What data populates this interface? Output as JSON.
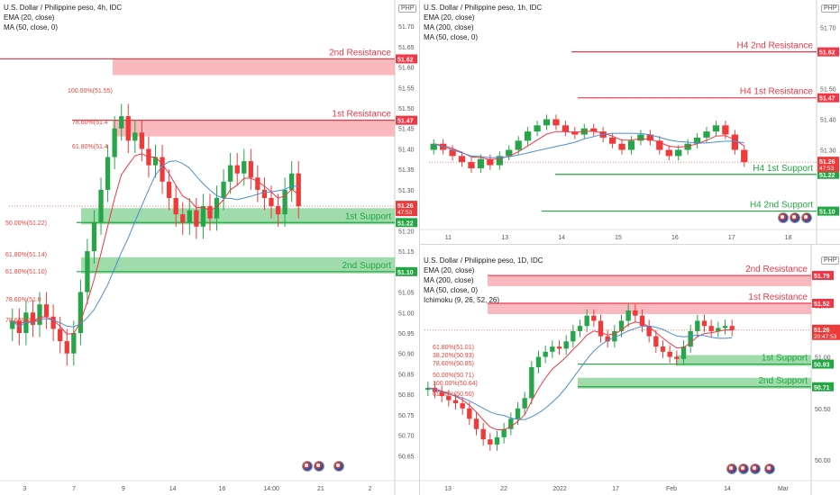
{
  "panels": {
    "p4h": {
      "legend": [
        "U.S. Dollar / Philippine peso, 4h, IDC",
        "EMA (20, close)",
        "MA (50, close, 0)"
      ],
      "currency": "PHP",
      "price_ticks": [
        "51.70",
        "51.65",
        "51.60",
        "51.55",
        "51.50",
        "51.45",
        "51.40",
        "51.35",
        "51.30",
        "51.25",
        "51.20",
        "51.15",
        "51.10",
        "51.05",
        "51.00",
        "50.95",
        "50.90",
        "50.85",
        "50.80",
        "50.75",
        "50.70",
        "50.65"
      ],
      "price_tick_values": [
        51.7,
        51.65,
        51.6,
        51.55,
        51.5,
        51.45,
        51.4,
        51.35,
        51.3,
        51.25,
        51.2,
        51.15,
        51.1,
        51.05,
        51.0,
        50.95,
        50.9,
        50.85,
        50.8,
        50.75,
        50.7,
        50.65
      ],
      "time_ticks": [
        "3",
        "7",
        "9",
        "14",
        "16",
        "14:00",
        "21",
        "2"
      ],
      "zones": [
        {
          "label": "2nd Resistance",
          "tag": "51.62",
          "kind": "resistance"
        },
        {
          "label": "1st Resistance",
          "tag": "51.47",
          "kind": "resistance"
        },
        {
          "label": "1st Support",
          "tag": "51.22",
          "kind": "support"
        },
        {
          "label": "2nd Support",
          "tag": "51.10",
          "kind": "support"
        }
      ],
      "last_price": "51.26",
      "countdown": "47:53",
      "fib_labels": [
        "100.00%(51.55)",
        "78.60%(51.4",
        "61.80%(51.4",
        "50.00%(51.22)",
        "61.80%(51.14)",
        "61.80%(51.10)",
        "78.60%(51.0",
        "78.60%(50.9"
      ]
    },
    "p1h": {
      "legend": [
        "U.S. Dollar / Philippine peso, 1h, IDC",
        "EMA (20, close)",
        "MA (200, close)",
        "MA (50, close, 0)"
      ],
      "currency": "PHP",
      "price_ticks": [
        "51.70",
        "51.50",
        "51.40",
        "51.30",
        "51.10"
      ],
      "time_ticks": [
        "11",
        "13",
        "14",
        "15",
        "16",
        "17",
        "18"
      ],
      "zones": [
        {
          "label": "H4 2nd Resistance",
          "tag": "51.62",
          "kind": "resistance"
        },
        {
          "label": "H4 1st Resistance",
          "tag": "51.47",
          "kind": "resistance"
        },
        {
          "label": "H4 1st Support",
          "tag": "51.22",
          "kind": "support"
        },
        {
          "label": "H4 2nd Support",
          "tag": "51.10",
          "kind": "support"
        }
      ],
      "last_price": "51.26",
      "countdown": "47:53"
    },
    "p1d": {
      "legend": [
        "U.S. Dollar / Philippine peso, 1D, IDC",
        "EMA (20, close)",
        "MA (200, close)",
        "MA (50, close, 0)",
        "Ichimoku (9, 26, 52, 26)"
      ],
      "currency": "PHP",
      "price_ticks": [
        "51.50",
        "51.00",
        "50.50",
        "50.00"
      ],
      "time_ticks": [
        "13",
        "22",
        "2022",
        "17",
        "Feb",
        "14",
        "Mar"
      ],
      "zones": [
        {
          "label": "2nd Resistance",
          "tag": "51.79",
          "kind": "resistance"
        },
        {
          "label": "1st Resistance",
          "tag": "51.52",
          "kind": "resistance"
        },
        {
          "label": "1st Support",
          "tag": "50.93",
          "kind": "support"
        },
        {
          "label": "2nd Support",
          "tag": "50.71",
          "kind": "support"
        }
      ],
      "last_price": "51.26",
      "countdown": "20:47:53",
      "fib_labels": [
        "61.80%(51.01)",
        "38.20%(50.93)",
        "78.60%(50.85)",
        "50.00%(50.71)",
        "100.00%(50.64)",
        "61.80%(50.50)"
      ]
    }
  },
  "colors": {
    "resistance": "#f23645",
    "resistance_fill": "#f7a1a8",
    "support": "#22a843",
    "support_fill": "#7fcf8f",
    "up_candle": "#26a648",
    "down_candle": "#ef3a3a",
    "ema": "#f23645",
    "ma50": "#4a8fd6",
    "ma200": "#f23645"
  },
  "chart_data": [
    {
      "type": "candlestick",
      "title": "U.S. Dollar / Philippine peso, 4h, IDC",
      "ylim": [
        50.62,
        51.72
      ],
      "levels": {
        "2nd Resistance": 51.62,
        "1st Resistance": 51.47,
        "1st Support": 51.22,
        "2nd Support": 51.1
      },
      "closes": [
        50.98,
        50.95,
        51.0,
        50.97,
        51.02,
        50.99,
        50.96,
        50.93,
        50.9,
        50.95,
        51.05,
        51.15,
        51.22,
        51.3,
        51.38,
        51.45,
        51.48,
        51.42,
        51.44,
        51.4,
        51.36,
        51.38,
        51.32,
        51.28,
        51.24,
        51.22,
        51.25,
        51.21,
        51.26,
        51.23,
        51.28,
        51.32,
        51.36,
        51.34,
        51.37,
        51.33,
        51.3,
        51.28,
        51.26,
        51.24,
        51.3,
        51.34,
        51.26
      ]
    },
    {
      "type": "candlestick",
      "title": "U.S. Dollar / Philippine peso, 1h, IDC",
      "ylim": [
        51.04,
        51.76
      ],
      "levels": {
        "H4 2nd Resistance": 51.62,
        "H4 1st Resistance": 51.47,
        "H4 1st Support": 51.22,
        "H4 2nd Support": 51.1
      },
      "closes": [
        51.32,
        51.3,
        51.28,
        51.26,
        51.24,
        51.27,
        51.25,
        51.28,
        51.3,
        51.33,
        51.36,
        51.38,
        51.4,
        51.38,
        51.36,
        51.35,
        51.37,
        51.36,
        51.34,
        51.32,
        51.3,
        51.33,
        51.35,
        51.33,
        51.3,
        51.28,
        51.3,
        51.32,
        51.34,
        51.36,
        51.38,
        51.35,
        51.3,
        51.26
      ]
    },
    {
      "type": "candlestick",
      "title": "U.S. Dollar / Philippine peso, 1D, IDC",
      "ylim": [
        49.8,
        52.0
      ],
      "levels": {
        "2nd Resistance": 51.79,
        "1st Resistance": 51.52,
        "1st Support": 50.93,
        "2nd Support": 50.71
      },
      "closes": [
        50.7,
        50.66,
        50.62,
        50.58,
        50.55,
        50.5,
        50.4,
        50.3,
        50.2,
        50.15,
        50.22,
        50.3,
        50.4,
        50.5,
        50.6,
        50.9,
        51.0,
        51.05,
        51.1,
        51.08,
        51.15,
        51.25,
        51.3,
        51.4,
        51.35,
        51.2,
        51.15,
        51.25,
        51.35,
        51.45,
        51.4,
        51.3,
        51.2,
        51.1,
        51.05,
        51.0,
        50.98,
        51.1,
        51.25,
        51.35,
        51.3,
        51.25,
        51.28,
        51.3,
        51.26
      ]
    }
  ]
}
